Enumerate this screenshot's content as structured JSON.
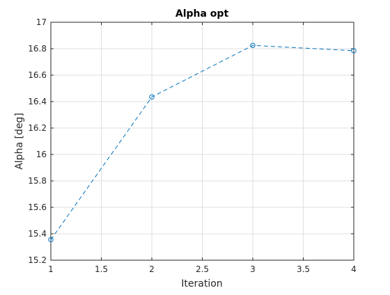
{
  "chart_data": {
    "type": "line",
    "title": "Alpha opt",
    "xlabel": "Iteration",
    "ylabel": "Alpha [deg]",
    "x": [
      1,
      2,
      3,
      4
    ],
    "series": [
      {
        "values": [
          15.355,
          16.435,
          16.825,
          16.785
        ],
        "color": "#0072BD",
        "line_style": "dashed",
        "marker": "circle"
      }
    ],
    "xlim": [
      1,
      4
    ],
    "ylim": [
      15.2,
      17
    ],
    "xticks": [
      1,
      1.5,
      2,
      2.5,
      3,
      3.5,
      4
    ],
    "xtick_labels": [
      "1",
      "1.5",
      "2",
      "2.5",
      "3",
      "3.5",
      "4"
    ],
    "yticks": [
      15.2,
      15.4,
      15.6,
      15.8,
      16,
      16.2,
      16.4,
      16.6,
      16.8,
      17
    ],
    "ytick_labels": [
      "15.2",
      "15.4",
      "15.6",
      "15.8",
      "16",
      "16.2",
      "16.4",
      "16.6",
      "16.8",
      "17"
    ],
    "grid": true
  }
}
